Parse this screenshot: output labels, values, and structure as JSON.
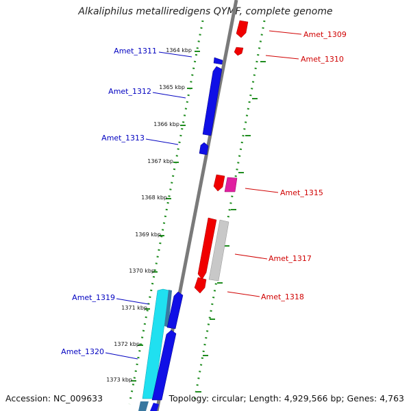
{
  "title": "Alkaliphilus metalliredigens QYMF, complete genome",
  "footer": {
    "accession": "Accession: NC_009633",
    "summary": "Topology: circular; Length: 4,929,566 bp; Genes: 4,763"
  },
  "colors": {
    "backbone": "#7a7a7a",
    "tick": "#1e8c1e",
    "forward_label": "#d00000",
    "reverse_label": "#0000c0",
    "red": "#f00000",
    "blue": "#1010e6",
    "magenta": "#e020a0",
    "gray": "#c8c8c8",
    "cyan": "#20e0f0",
    "steel": "#3a78a0"
  },
  "ticks": [
    "1364 kbp",
    "1365 kbp",
    "1366 kbp",
    "1367 kbp",
    "1368 kbp",
    "1369 kbp",
    "1370 kbp",
    "1371 kbp",
    "1372 kbp",
    "1373 kbp"
  ],
  "genes": [
    {
      "label": "Amet_1309",
      "strand": "forward"
    },
    {
      "label": "Amet_1310",
      "strand": "forward"
    },
    {
      "label": "Amet_1311",
      "strand": "reverse"
    },
    {
      "label": "Amet_1312",
      "strand": "reverse"
    },
    {
      "label": "Amet_1313",
      "strand": "reverse"
    },
    {
      "label": "Amet_1315",
      "strand": "forward"
    },
    {
      "label": "Amet_1317",
      "strand": "forward"
    },
    {
      "label": "Amet_1318",
      "strand": "forward"
    },
    {
      "label": "Amet_1319",
      "strand": "reverse"
    },
    {
      "label": "Amet_1320",
      "strand": "reverse"
    }
  ]
}
